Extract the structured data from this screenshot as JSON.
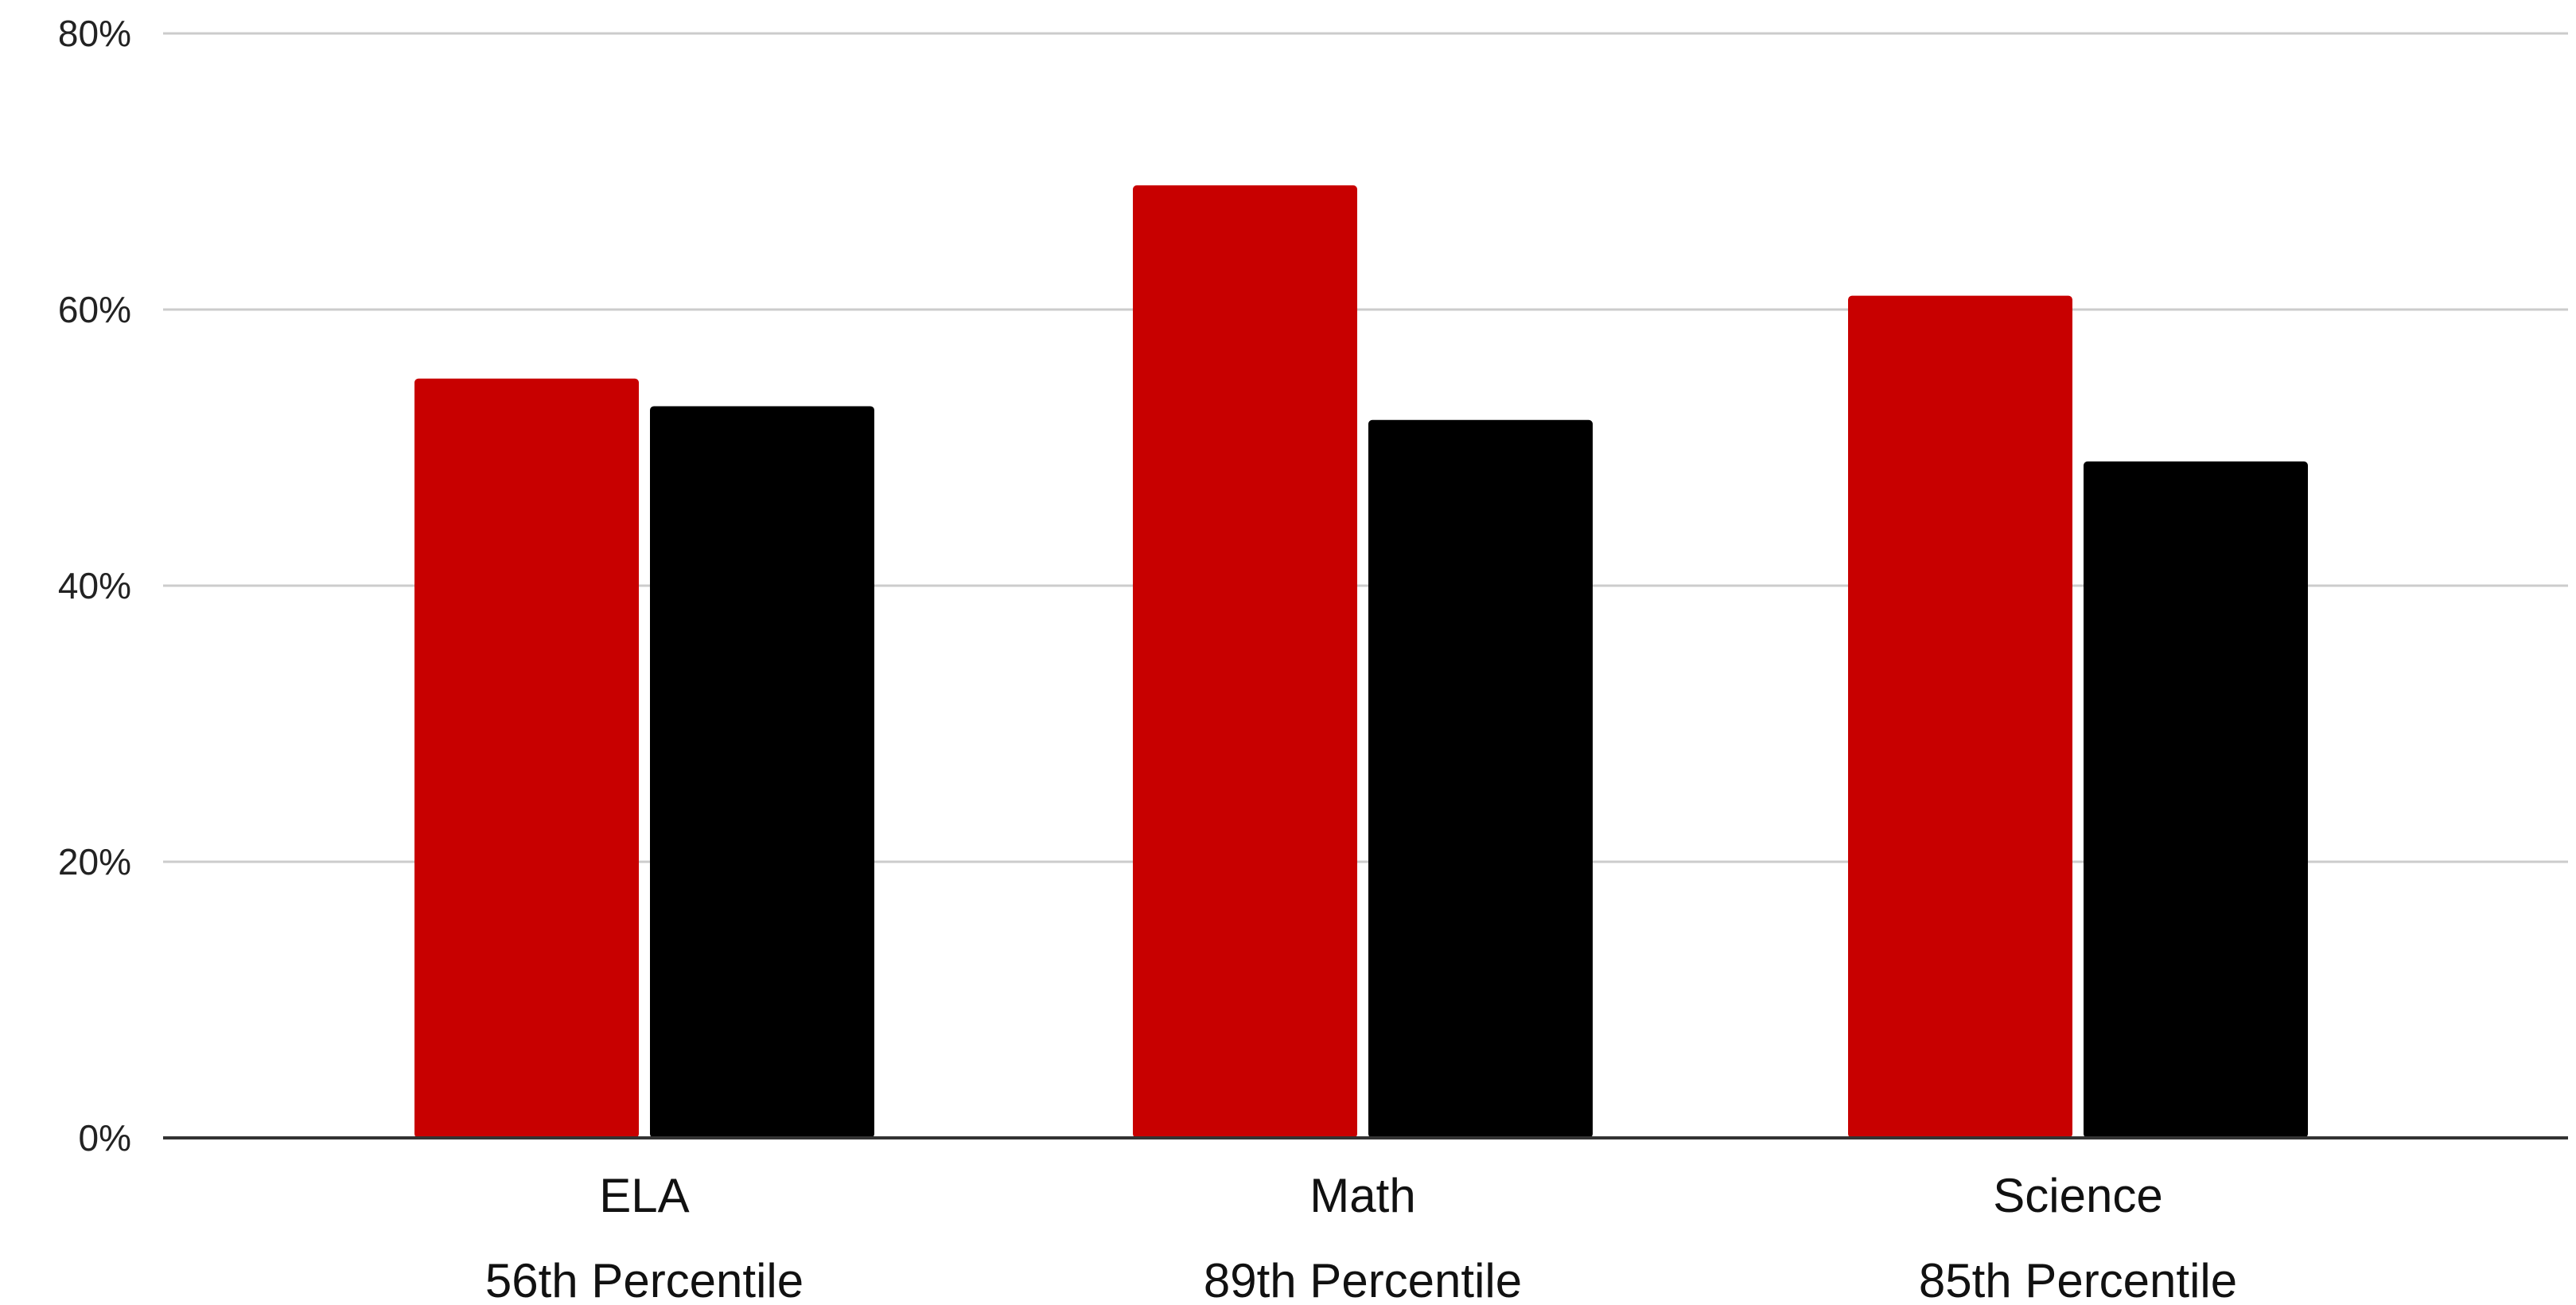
{
  "chart_data": {
    "type": "bar",
    "categories": [
      "ELA",
      "Math",
      "Science"
    ],
    "category_sublabels": [
      "56th Percentile",
      "89th Percentile",
      "85th Percentile"
    ],
    "series": [
      {
        "values": [
          55,
          69,
          61
        ],
        "color": "#c80000"
      },
      {
        "values": [
          53,
          52,
          49
        ],
        "color": "#000000"
      }
    ],
    "y_ticks": [
      "0%",
      "20%",
      "40%",
      "60%",
      "80%"
    ],
    "y_tick_values": [
      0,
      20,
      40,
      60,
      80
    ],
    "ylim": [
      0,
      80
    ],
    "grid": true,
    "gridline_color": "#cccccc",
    "baseline_color": "#333333",
    "legend": "none"
  }
}
